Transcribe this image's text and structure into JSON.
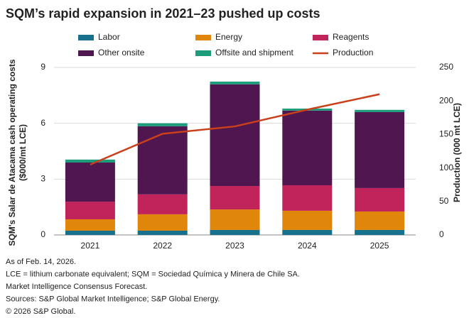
{
  "chart_data": {
    "type": "bar",
    "stacked": true,
    "title": "SQM’s rapid expansion in 2021–23 pushed up costs",
    "y_label": "SQM's Salar de Atacama cash operating costs ($000/mt LCE)",
    "y2_label": "Production (000 mt LCE)",
    "categories": [
      "2021",
      "2022",
      "2023",
      "2024",
      "2025"
    ],
    "series": [
      {
        "name": "Labor",
        "color": "#17708c",
        "values": [
          0.23,
          0.23,
          0.27,
          0.27,
          0.27
        ]
      },
      {
        "name": "Energy",
        "color": "#e0860a",
        "values": [
          0.61,
          0.88,
          1.1,
          1.03,
          0.99
        ]
      },
      {
        "name": "Reagents",
        "color": "#c1245a",
        "values": [
          0.95,
          1.07,
          1.26,
          1.37,
          1.26
        ]
      },
      {
        "name": "Other onsite",
        "color": "#4f1650",
        "values": [
          2.1,
          3.66,
          5.46,
          4.01,
          4.08
        ]
      },
      {
        "name": "Offsite and shipment",
        "color": "#1d9c7b",
        "values": [
          0.16,
          0.16,
          0.15,
          0.11,
          0.12
        ]
      },
      {
        "name": "Production",
        "color": "#c9401b",
        "type": "line",
        "axis": "y2",
        "values": [
          105,
          151,
          162,
          187,
          210
        ]
      }
    ],
    "ylim": [
      0,
      9
    ],
    "yticks": [
      0,
      3,
      6,
      9
    ],
    "y2lim": [
      0,
      250
    ],
    "y2ticks": [
      0,
      50,
      100,
      150,
      200,
      250
    ],
    "grid": true,
    "notes": [
      "As of Feb. 14, 2026.",
      "LCE = lithium carbonate equivalent; SQM = Sociedad Química y Minera de Chile SA.",
      "Market Intelligence Consensus Forecast.",
      "Sources: S&P Global Market Intelligence; S&P Global Energy.",
      "© 2026 S&P Global."
    ]
  }
}
